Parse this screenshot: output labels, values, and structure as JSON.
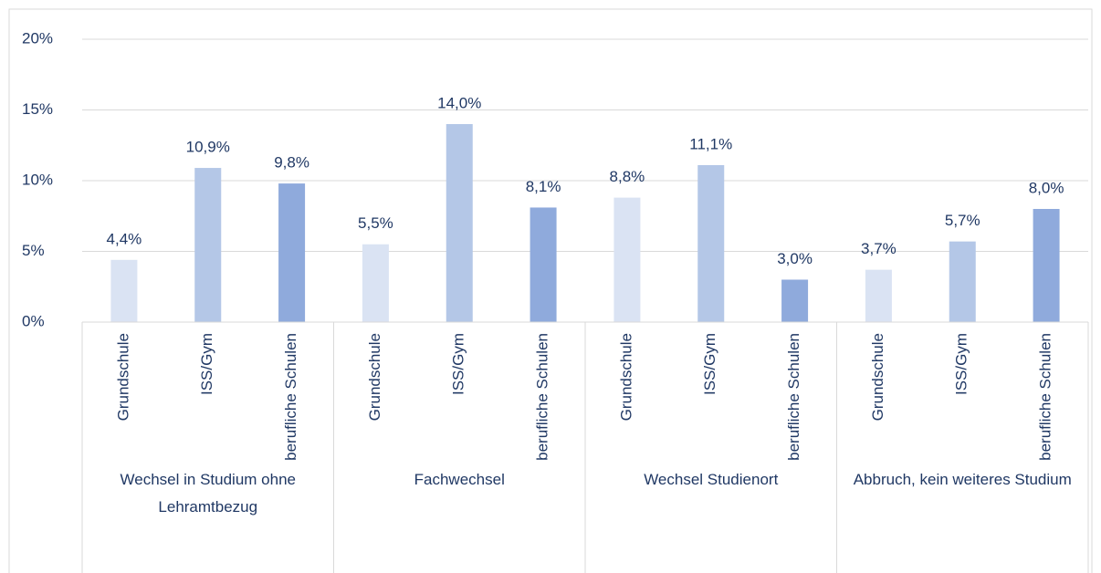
{
  "chart_data": {
    "type": "bar",
    "categories": [
      "Wechsel in Studium ohne Lehramtbezug",
      "Fachwechsel",
      "Wechsel Studienort",
      "Abbruch, kein weiteres Studium"
    ],
    "series": [
      {
        "name": "Grundschule",
        "color": "#dae3f3",
        "values": [
          4.4,
          5.5,
          8.8,
          3.7
        ],
        "value_labels": [
          "4,4%",
          "5,5%",
          "8,8%",
          "3,7%"
        ]
      },
      {
        "name": "ISS/Gym",
        "color": "#b4c7e7",
        "values": [
          10.9,
          14.0,
          11.1,
          5.7
        ],
        "value_labels": [
          "10,9%",
          "14,0%",
          "11,1%",
          "5,7%"
        ]
      },
      {
        "name": "berufliche Schulen",
        "color": "#8faadc",
        "values": [
          9.8,
          8.1,
          3.0,
          8.0
        ],
        "value_labels": [
          "9,8%",
          "8,1%",
          "3,0%",
          "8,0%"
        ]
      }
    ],
    "ylim": [
      0,
      20
    ],
    "yticks": [
      {
        "value": 0,
        "label": "0%"
      },
      {
        "value": 5,
        "label": "5%"
      },
      {
        "value": 10,
        "label": "10%"
      },
      {
        "value": 15,
        "label": "15%"
      },
      {
        "value": 20,
        "label": "20%"
      }
    ],
    "grid": true
  }
}
